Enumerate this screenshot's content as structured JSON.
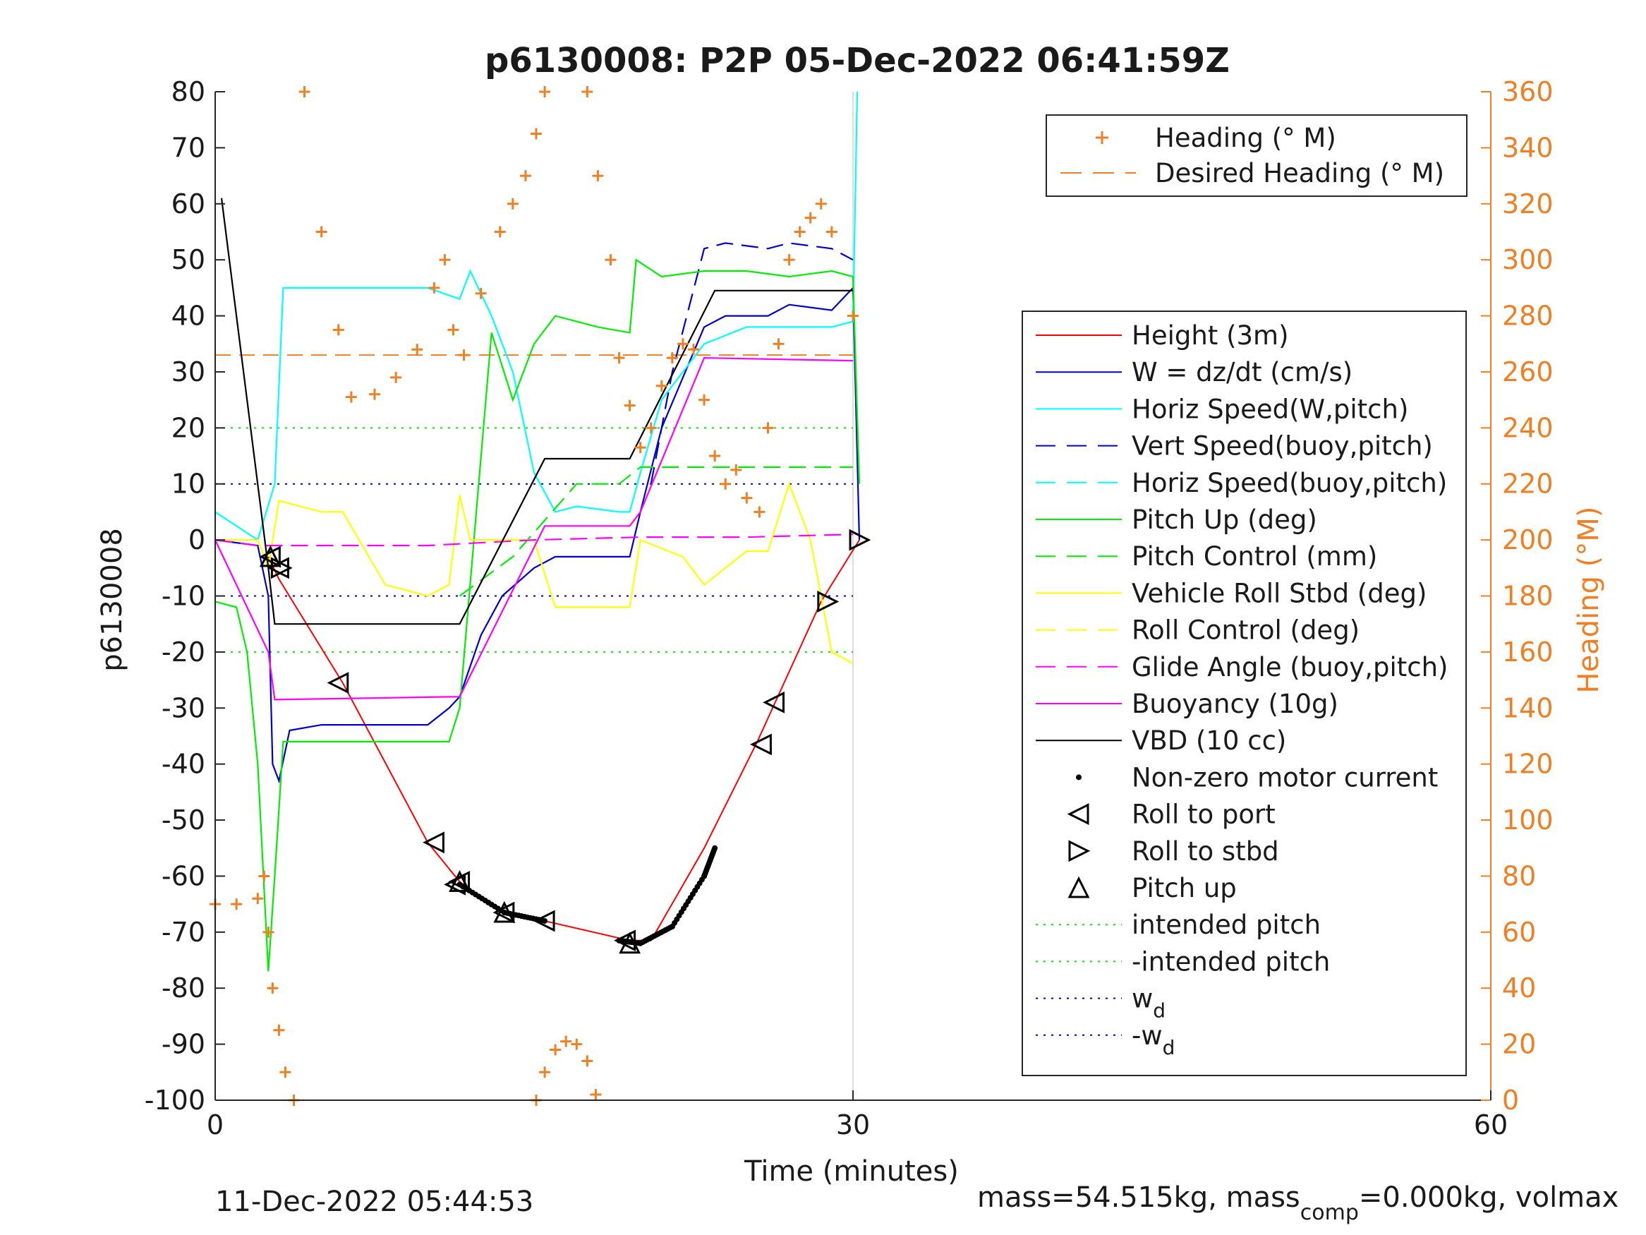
{
  "figure": {
    "title": "p6130008: P2P 05-Dec-2022 06:41:59Z",
    "date_label": "11-Dec-2022 05:44:53",
    "mass_text": "mass=54.515kg, mass",
    "mass_sub": "comp",
    "mass_tail": "=0.000kg, volmax"
  },
  "legend_heading": [
    {
      "label": "Heading (° M)",
      "color": "#f07f23",
      "marker": "plus"
    },
    {
      "label": "Desired Heading (° M)",
      "color": "#f07f23",
      "marker": "dash"
    }
  ],
  "legend_main": [
    {
      "label": "Height (3m)",
      "color": "#ff0000",
      "style": "solid"
    },
    {
      "label": "W = dz/dt (cm/s)",
      "color": "#0000cc",
      "style": "solid"
    },
    {
      "label": "Horiz Speed(W,pitch)",
      "color": "#00ffff",
      "style": "solid"
    },
    {
      "label": "Vert Speed(buoy,pitch)",
      "color": "#0000cc",
      "style": "dash"
    },
    {
      "label": "Horiz Speed(buoy,pitch)",
      "color": "#00ffff",
      "style": "dash"
    },
    {
      "label": "Pitch Up (deg)",
      "color": "#00ee00",
      "style": "solid"
    },
    {
      "label": "Pitch Control (mm)",
      "color": "#00ee00",
      "style": "dash"
    },
    {
      "label": "Vehicle Roll Stbd (deg)",
      "color": "#ffff00",
      "style": "solid"
    },
    {
      "label": "Roll Control (deg)",
      "color": "#ffff00",
      "style": "dash"
    },
    {
      "label": "Glide Angle (buoy,pitch)",
      "color": "#ff00ff",
      "style": "dash"
    },
    {
      "label": "Buoyancy (10g)",
      "color": "#ff00ff",
      "style": "solid"
    },
    {
      "label": "VBD (10 cc)",
      "color": "#000000",
      "style": "solid"
    },
    {
      "label": "Non-zero motor current",
      "color": "#000000",
      "style": "dot"
    },
    {
      "label": "Roll to port",
      "color": "#000000",
      "style": "tri-left"
    },
    {
      "label": "Roll to stbd",
      "color": "#000000",
      "style": "tri-right"
    },
    {
      "label": "Pitch up",
      "color": "#000000",
      "style": "tri-up"
    },
    {
      "label": "intended pitch",
      "color": "#00ee00",
      "style": "dotted"
    },
    {
      "label": "-intended pitch",
      "color": "#00ee00",
      "style": "dotted"
    },
    {
      "label": "w",
      "sub": "d",
      "color": "#0000cc",
      "style": "dotted"
    },
    {
      "label": "-w",
      "sub": "d",
      "color": "#0000cc",
      "style": "dotted"
    }
  ],
  "chart_data": {
    "type": "line",
    "title": "p6130008: P2P 05-Dec-2022 06:41:59Z",
    "xlabel": "Time (minutes)",
    "ylabel": "p6130008",
    "y2label": "Heading (°M)",
    "xlim": [
      0,
      60
    ],
    "ylim": [
      -100,
      80
    ],
    "y2lim": [
      0,
      360
    ],
    "xticks": [
      0,
      30,
      60
    ],
    "yticks": [
      -100,
      -90,
      -80,
      -70,
      -60,
      -50,
      -40,
      -30,
      -20,
      -10,
      0,
      10,
      20,
      30,
      40,
      50,
      60,
      70,
      80
    ],
    "y2ticks": [
      0,
      20,
      40,
      60,
      80,
      100,
      120,
      140,
      160,
      180,
      200,
      220,
      240,
      260,
      280,
      300,
      320,
      340,
      360
    ],
    "grid": "vertical at x-ticks",
    "legend_placement": [
      "top-right",
      "right"
    ],
    "reference_lines": [
      {
        "name": "intended pitch",
        "y": 20
      },
      {
        "name": "-intended pitch",
        "y": -20
      },
      {
        "name": "w_d",
        "y": 10
      },
      {
        "name": "-w_d",
        "y": -10
      },
      {
        "name": "Desired Heading (° M)",
        "y2": 266
      }
    ],
    "series": [
      {
        "name": "Height (3m)",
        "x": [
          2.5,
          3.0,
          6.0,
          10.0,
          11.5,
          13.5,
          15.5,
          19.5,
          20.5,
          23.0,
          25.5,
          28.5,
          30.3
        ],
        "y": [
          -3,
          -7,
          -25.5,
          -54,
          -61,
          -66.5,
          -68,
          -71.5,
          -71.5,
          -55,
          -36,
          -11,
          0
        ]
      },
      {
        "name": "W = dz/dt (cm/s)",
        "x": [
          0,
          2,
          2.5,
          2.7,
          3,
          3.5,
          5,
          8,
          10,
          11,
          11.5,
          12.5,
          13.5,
          15,
          16,
          18,
          19.5,
          20,
          21,
          23,
          24,
          26,
          27,
          29,
          30,
          30.3
        ],
        "y": [
          0,
          -1,
          -10,
          -40,
          -43,
          -34,
          -33,
          -33,
          -33,
          -30,
          -28,
          -17,
          -10,
          -5,
          -3,
          -3,
          -3,
          5,
          20,
          38,
          40,
          40,
          42,
          41,
          45,
          0
        ]
      },
      {
        "name": "Horiz Speed(W,pitch)",
        "x": [
          0,
          2,
          2.8,
          3.2,
          5,
          8,
          10,
          11.5,
          12,
          13,
          14,
          15,
          16,
          17,
          19,
          19.5,
          20,
          21,
          23,
          25,
          27,
          29,
          30,
          30.2
        ],
        "y": [
          5,
          0,
          10,
          45,
          45,
          45,
          45,
          43,
          48,
          40,
          30,
          12,
          5,
          6,
          5,
          5,
          12,
          25,
          35,
          38,
          38,
          38,
          39,
          80
        ]
      },
      {
        "name": "Vert Speed(buoy,pitch)",
        "x": [
          20.5,
          21.5,
          23,
          24,
          26,
          27,
          29,
          30
        ],
        "y": [
          10,
          30,
          52,
          53,
          52,
          53,
          52,
          50
        ]
      },
      {
        "name": "Pitch Up (deg)",
        "x": [
          0,
          1,
          1.5,
          2,
          2.5,
          2.8,
          3.2,
          5,
          8,
          10,
          11,
          11.5,
          13,
          14,
          15,
          16,
          18,
          19.5,
          19.8,
          21,
          23,
          25,
          27,
          29,
          30,
          30.3
        ],
        "y": [
          -11,
          -12,
          -20,
          -40,
          -77,
          -60,
          -36,
          -36,
          -36,
          -36,
          -36,
          -30,
          37,
          25,
          35,
          40,
          38,
          37,
          50,
          47,
          48,
          48,
          47,
          48,
          47,
          10
        ]
      },
      {
        "name": "Pitch Control (mm)",
        "x": [
          11.5,
          14,
          17,
          19,
          20,
          23,
          26,
          28,
          30
        ],
        "y": [
          -10,
          -3,
          10,
          10,
          13,
          13,
          13,
          13,
          13
        ]
      },
      {
        "name": "Vehicle Roll Stbd (deg)",
        "x": [
          0,
          2,
          2.5,
          3,
          5,
          6,
          8,
          10,
          11,
          11.5,
          12,
          14,
          15,
          16,
          19.5,
          20,
          22,
          23,
          25,
          26,
          27,
          28,
          29,
          30
        ],
        "y": [
          0,
          0,
          -5,
          7,
          5,
          5,
          -8,
          -10,
          -8,
          8,
          0,
          0,
          0,
          -12,
          -12,
          0,
          -3,
          -8,
          -2,
          -2,
          10,
          0,
          -20,
          -22
        ]
      },
      {
        "name": "Glide Angle (buoy,pitch)",
        "x": [
          0,
          2,
          10,
          15,
          20,
          25,
          30
        ],
        "y": [
          0,
          -1,
          -1,
          0,
          0.5,
          0.5,
          1
        ]
      },
      {
        "name": "Buoyancy (10g)",
        "x": [
          0,
          2.5,
          2.8,
          11,
          11.5,
          15.5,
          19.5,
          20,
          23,
          30
        ],
        "y": [
          0,
          -20,
          -28.5,
          -28,
          -28,
          2.5,
          2.5,
          5,
          32.5,
          32
        ]
      },
      {
        "name": "VBD (10 cc)",
        "x": [
          0.3,
          2.5,
          2.8,
          11.5,
          15.5,
          19.5,
          23.5,
          30
        ],
        "y": [
          61,
          -5,
          -15,
          -15,
          14.5,
          14.5,
          44.5,
          44.5
        ]
      },
      {
        "name": "Heading (° M)",
        "axis": "right",
        "x": [
          0,
          1,
          2,
          2.3,
          2.5,
          2.7,
          3.0,
          3.3,
          3.7,
          4.2,
          5,
          5.8,
          6.4,
          7.5,
          8.5,
          9.5,
          10.3,
          10.8,
          11.2,
          11.7,
          12.5,
          13.4,
          14.0,
          14.6,
          15.1,
          15.5,
          17.5,
          18.0,
          18.6,
          19.0,
          19.5,
          20.0,
          20.5,
          21.0,
          21.5,
          22.0,
          22.5,
          23.0,
          23.5,
          24.0,
          24.5,
          25.0,
          25.6,
          26.0,
          26.5,
          27.0,
          27.5,
          28.0,
          28.5,
          29.0,
          30.0
        ],
        "y": [
          70,
          70,
          72,
          80,
          60,
          40,
          25,
          10,
          0,
          360,
          310,
          275,
          251,
          252,
          258,
          268,
          290,
          300,
          275,
          266,
          288,
          310,
          320,
          330,
          345,
          360,
          360,
          330,
          300,
          265,
          248,
          233,
          240,
          255,
          265,
          270,
          268,
          250,
          230,
          220,
          225,
          215,
          210,
          240,
          270,
          300,
          310,
          315,
          320,
          310,
          280
        ]
      },
      {
        "name": "Heading (° M) low branch",
        "axis": "right",
        "x": [
          15.1,
          15.5,
          16.0,
          16.5,
          17.0,
          17.5,
          17.9
        ],
        "y": [
          0,
          10,
          18,
          21,
          20,
          14,
          2
        ]
      }
    ],
    "markers": {
      "roll_to_port": [
        [
          2.6,
          -3
        ],
        [
          3.0,
          -5
        ],
        [
          5.8,
          -25.5
        ],
        [
          10.3,
          -54
        ],
        [
          11.3,
          -61.5
        ],
        [
          11.5,
          -61
        ],
        [
          13.6,
          -66.5
        ],
        [
          15.5,
          -68
        ],
        [
          19.3,
          -71.5
        ],
        [
          26.3,
          -29
        ],
        [
          25.7,
          -36.5
        ]
      ],
      "roll_to_stbd": [
        [
          3.1,
          -5
        ],
        [
          28.8,
          -11
        ],
        [
          30.3,
          0
        ]
      ],
      "pitch_up": [
        [
          2.6,
          -3
        ],
        [
          11.5,
          -61
        ],
        [
          13.6,
          -66.5
        ],
        [
          19.5,
          -72
        ]
      ],
      "motor_current_segments": [
        [
          11.5,
          -61.5,
          13.6,
          -66.5,
          15.5,
          -68
        ],
        [
          19.0,
          -71.5,
          20.0,
          -72,
          21.5,
          -69,
          23.0,
          -60,
          23.5,
          -55
        ]
      ]
    }
  }
}
